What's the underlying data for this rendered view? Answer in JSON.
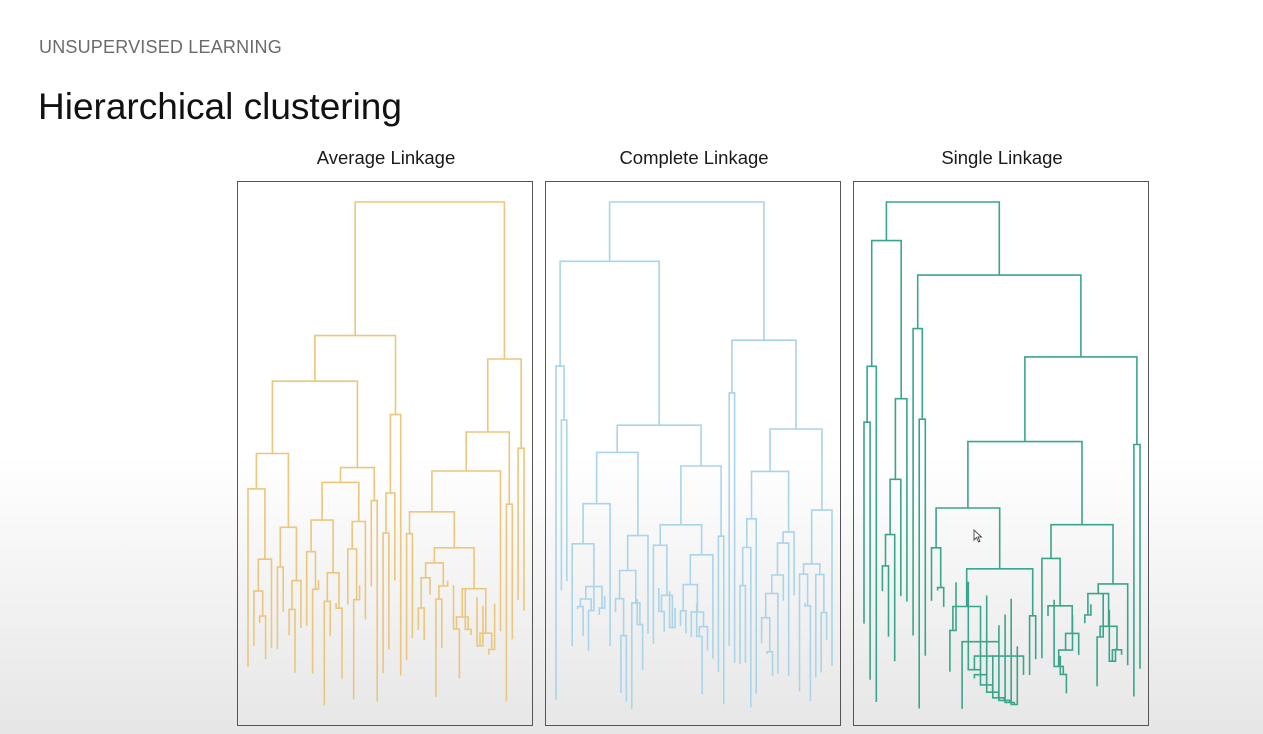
{
  "slide": {
    "section": "UNSUPERVISED LEARNING",
    "title": "Hierarchical clustering"
  },
  "panels": [
    {
      "id": "average",
      "title": "Average Linkage",
      "color": "#ecc67a",
      "seed": 11,
      "leaves": 48,
      "balance": 0.38
    },
    {
      "id": "complete",
      "title": "Complete Linkage",
      "color": "#a9d4ea",
      "seed": 29,
      "leaves": 52,
      "balance": 0.5
    },
    {
      "id": "single",
      "title": "Single Linkage",
      "color": "#3aa58d",
      "seed": 7,
      "leaves": 46,
      "balance": 0.08
    }
  ],
  "colors": {
    "frame": "#555555",
    "title": "#111111",
    "section": "#6b6b6b"
  }
}
